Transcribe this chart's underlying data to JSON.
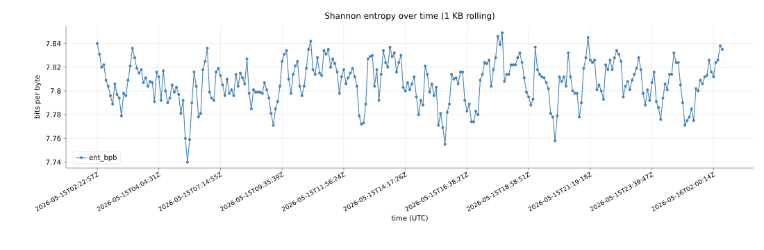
{
  "chart_data": {
    "type": "line",
    "title": "Shannon entropy over time (1 KB rolling)",
    "xlabel": "time (UTC)",
    "ylabel": "bits per byte",
    "categories": [
      "2026-05-15T02:22:57Z",
      null,
      null,
      null,
      null,
      null,
      null,
      null,
      null,
      null,
      null,
      null,
      null,
      null,
      null,
      null,
      null,
      null,
      null,
      null,
      null,
      null,
      null,
      null,
      null,
      null,
      null,
      null,
      "2026-05-15T04:04:31Z",
      null,
      null,
      null,
      null,
      null,
      null,
      null,
      null,
      null,
      null,
      null,
      null,
      null,
      null,
      null,
      null,
      null,
      null,
      null,
      null,
      null,
      null,
      null,
      null,
      null,
      null,
      null,
      "2026-05-15T07:14:55Z",
      null,
      null,
      null,
      null,
      null,
      null,
      null,
      null,
      null,
      null,
      null,
      null,
      null,
      null,
      null,
      null,
      null,
      null,
      null,
      null,
      null,
      null,
      null,
      null,
      null,
      null,
      null,
      "2026-05-15T09:35:39Z",
      null,
      null,
      null,
      null,
      null,
      null,
      null,
      null,
      null,
      null,
      null,
      null,
      null,
      null,
      null,
      null,
      null,
      null,
      null,
      null,
      null,
      null,
      null,
      null,
      null,
      null,
      null,
      "2026-05-15T11:56:24Z",
      null,
      null,
      null,
      null,
      null,
      null,
      null,
      null,
      null,
      null,
      null,
      null,
      null,
      null,
      null,
      null,
      null,
      null,
      null,
      null,
      null,
      null,
      null,
      null,
      null,
      null,
      null,
      "2026-05-15T14:17:26Z",
      null,
      null,
      null,
      null,
      null,
      null,
      null,
      null,
      null,
      null,
      null,
      null,
      null,
      null,
      null,
      null,
      null,
      null,
      null,
      null,
      null,
      null,
      null,
      null,
      null,
      null,
      null,
      "2026-05-15T16:38:21Z",
      null,
      null,
      null,
      null,
      null,
      null,
      null,
      null,
      null,
      null,
      null,
      null,
      null,
      null,
      null,
      null,
      null,
      null,
      null,
      null,
      null,
      null,
      null,
      null,
      null,
      null,
      null,
      "2026-05-15T18:58:51Z",
      null,
      null,
      null,
      null,
      null,
      null,
      null,
      null,
      null,
      null,
      null,
      null,
      null,
      null,
      null,
      null,
      null,
      null,
      null,
      null,
      null,
      null,
      null,
      null,
      null,
      null,
      null,
      "2026-05-15T21:19:18Z",
      null,
      null,
      null,
      null,
      null,
      null,
      null,
      null,
      null,
      null,
      null,
      null,
      null,
      null,
      null,
      null,
      null,
      null,
      null,
      null,
      null,
      null,
      null,
      null,
      null,
      null,
      null,
      "2026-05-15T23:39:47Z",
      null,
      null,
      null,
      null,
      null,
      null,
      null,
      null,
      null,
      null,
      null,
      null,
      null,
      null,
      null,
      null,
      null,
      null,
      null,
      null,
      null,
      null,
      null,
      null,
      null,
      null,
      null,
      "2026-05-16T02:00:14Z",
      null,
      null,
      null,
      null
    ],
    "series": [
      {
        "name": "ent_bpb",
        "color": "#4682b4",
        "values": [
          7.84,
          7.831,
          7.82,
          7.822,
          7.809,
          7.804,
          7.796,
          7.789,
          7.806,
          7.797,
          7.794,
          7.779,
          7.798,
          7.796,
          7.809,
          7.821,
          7.836,
          7.828,
          7.819,
          7.815,
          7.818,
          7.807,
          7.811,
          7.804,
          7.808,
          7.807,
          7.791,
          7.816,
          7.812,
          7.792,
          7.817,
          7.8,
          7.79,
          7.794,
          7.805,
          7.799,
          7.803,
          7.797,
          7.781,
          7.792,
          7.76,
          7.74,
          7.759,
          7.79,
          7.816,
          7.804,
          7.778,
          7.781,
          7.818,
          7.825,
          7.836,
          7.799,
          7.794,
          7.792,
          7.816,
          7.819,
          7.813,
          7.805,
          7.796,
          7.81,
          7.798,
          7.801,
          7.796,
          7.814,
          7.804,
          7.815,
          7.811,
          7.806,
          7.827,
          7.798,
          7.785,
          7.801,
          7.799,
          7.799,
          7.799,
          7.798,
          7.807,
          7.801,
          7.794,
          7.781,
          7.771,
          7.785,
          7.791,
          7.804,
          7.825,
          7.831,
          7.834,
          7.81,
          7.798,
          7.814,
          7.821,
          7.825,
          7.804,
          7.796,
          7.804,
          7.819,
          7.835,
          7.842,
          7.818,
          7.814,
          7.828,
          7.815,
          7.813,
          7.834,
          7.831,
          7.835,
          7.82,
          7.827,
          7.823,
          7.816,
          7.798,
          7.812,
          7.818,
          7.806,
          7.811,
          7.815,
          7.819,
          7.812,
          7.804,
          7.779,
          7.772,
          7.773,
          7.789,
          7.827,
          7.829,
          7.83,
          7.804,
          7.818,
          7.792,
          7.814,
          7.834,
          7.824,
          7.82,
          7.837,
          7.829,
          7.832,
          7.816,
          7.824,
          7.83,
          7.803,
          7.8,
          7.807,
          7.801,
          7.806,
          7.812,
          7.795,
          7.78,
          7.792,
          7.788,
          7.821,
          7.814,
          7.799,
          7.806,
          7.796,
          7.803,
          7.771,
          7.781,
          7.769,
          7.755,
          7.782,
          7.789,
          7.814,
          7.81,
          7.811,
          7.806,
          7.816,
          7.816,
          7.792,
          7.783,
          7.789,
          7.774,
          7.774,
          7.783,
          7.78,
          7.809,
          7.814,
          7.824,
          7.823,
          7.826,
          7.804,
          7.818,
          7.828,
          7.846,
          7.839,
          7.849,
          7.808,
          7.814,
          7.814,
          7.822,
          7.822,
          7.822,
          7.828,
          7.832,
          7.824,
          7.811,
          7.799,
          7.795,
          7.788,
          7.793,
          7.837,
          7.818,
          7.814,
          7.812,
          7.811,
          7.807,
          7.802,
          7.781,
          7.778,
          7.758,
          7.779,
          7.812,
          7.808,
          7.812,
          7.804,
          7.832,
          7.812,
          7.8,
          7.798,
          7.798,
          7.778,
          7.79,
          7.819,
          7.828,
          7.845,
          7.826,
          7.824,
          7.826,
          7.801,
          7.805,
          7.8,
          7.793,
          7.822,
          7.818,
          7.826,
          7.818,
          7.828,
          7.834,
          7.831,
          7.825,
          7.795,
          7.804,
          7.808,
          7.801,
          7.809,
          7.814,
          7.819,
          7.828,
          7.818,
          7.798,
          7.788,
          7.801,
          7.792,
          7.807,
          7.816,
          7.791,
          7.786,
          7.776,
          7.794,
          7.806,
          7.801,
          7.814,
          7.814,
          7.832,
          7.824,
          7.824,
          7.805,
          7.79,
          7.771,
          7.775,
          7.778,
          7.785,
          7.775,
          7.802,
          7.8,
          7.809,
          7.806,
          7.812,
          7.813,
          7.826,
          7.816,
          7.812,
          7.824,
          7.826,
          7.838,
          7.835
        ]
      }
    ],
    "ylim": [
      7.735,
      7.855
    ],
    "yticks": [
      7.74,
      7.76,
      7.78,
      7.8,
      7.82,
      7.84
    ],
    "grid": true,
    "legend": "bottom left",
    "marker": "circle",
    "line_style": "solid"
  }
}
